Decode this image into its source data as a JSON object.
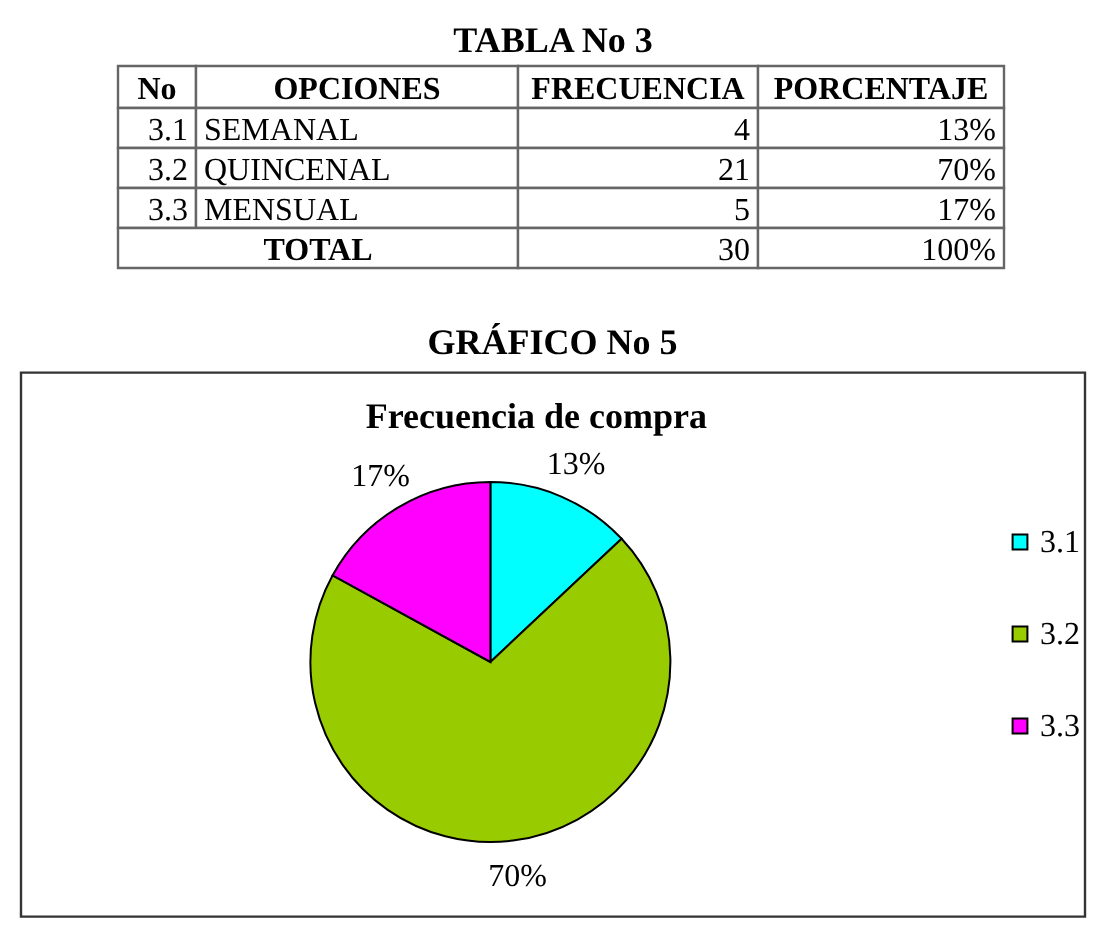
{
  "chart_data": [
    {
      "type": "other",
      "title": "TABLA No 3",
      "categories": [
        "No",
        "OPCIONES",
        "FRECUENCIA",
        "PORCENTAJE"
      ],
      "annotations": [
        "3.1",
        "SEMANAL",
        "4",
        "13%",
        "3.2",
        "QUINCENAL",
        "21",
        "70%",
        "3.3",
        "MENSUAL",
        "5",
        "17%",
        "TOTAL",
        "30",
        "100%"
      ]
    },
    {
      "type": "pie",
      "title": "GRÁFICO No 5",
      "subtitle": "Frecuencia de compra",
      "categories": [
        "3.1",
        "3.2",
        "3.3"
      ],
      "values": [
        13,
        70,
        17
      ],
      "colors": [
        "#00ffff",
        "#99cc00",
        "#ff00ff"
      ],
      "value_labels": [
        "13%",
        "70%",
        "17%"
      ],
      "legend": "right"
    }
  ]
}
